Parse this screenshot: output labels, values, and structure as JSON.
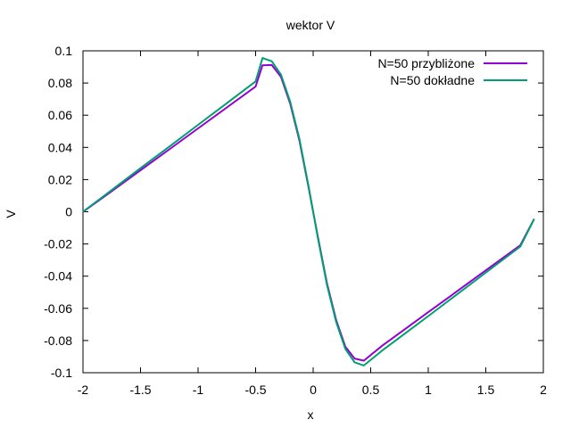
{
  "chart_data": {
    "type": "line",
    "title": "wektor V",
    "xlabel": "x",
    "ylabel": "V",
    "xlim": [
      -2,
      2
    ],
    "ylim": [
      -0.1,
      0.1
    ],
    "xticks": [
      -2,
      -1.5,
      -1,
      -0.5,
      0,
      0.5,
      1,
      1.5,
      2
    ],
    "xtick_labels": [
      "-2",
      "-1.5",
      "-1",
      "-0.5",
      "0",
      "0.5",
      "1",
      "1.5",
      "2"
    ],
    "yticks": [
      -0.1,
      -0.08,
      -0.06,
      -0.04,
      -0.02,
      0,
      0.02,
      0.04,
      0.06,
      0.08,
      0.1
    ],
    "ytick_labels": [
      "-0.1",
      "-0.08",
      "-0.06",
      "-0.04",
      "-0.02",
      "0",
      "0.02",
      "0.04",
      "0.06",
      "0.08",
      "0.1"
    ],
    "grid": false,
    "legend_position": "top-right",
    "series": [
      {
        "name": "N=50 przybliżone",
        "color": "#9400d3",
        "x": [
          -2,
          -1.75,
          -1.5,
          -1.25,
          -1,
          -0.75,
          -0.5,
          -0.44,
          -0.36,
          -0.28,
          -0.2,
          -0.12,
          -0.04,
          0,
          0.04,
          0.12,
          0.2,
          0.28,
          0.36,
          0.44,
          0.6,
          0.8,
          1,
          1.2,
          1.4,
          1.6,
          1.8,
          1.92
        ],
        "y": [
          0,
          0.0128,
          0.0258,
          0.0388,
          0.0518,
          0.0648,
          0.0778,
          0.091,
          0.0912,
          0.0838,
          0.0673,
          0.0445,
          0.0153,
          0,
          -0.0153,
          -0.0445,
          -0.0673,
          -0.0838,
          -0.0912,
          -0.0925,
          -0.0832,
          -0.0728,
          -0.0624,
          -0.052,
          -0.0416,
          -0.0312,
          -0.0208,
          -0.0045
        ]
      },
      {
        "name": "N=50 dokładne",
        "color": "#009e73",
        "x": [
          -2,
          -1.75,
          -1.5,
          -1.25,
          -1,
          -0.75,
          -0.5,
          -0.44,
          -0.36,
          -0.28,
          -0.2,
          -0.12,
          -0.04,
          0,
          0.04,
          0.12,
          0.2,
          0.28,
          0.36,
          0.44,
          0.6,
          0.8,
          1,
          1.2,
          1.4,
          1.6,
          1.8,
          1.92
        ],
        "y": [
          0,
          0.0135,
          0.0271,
          0.0405,
          0.054,
          0.0675,
          0.081,
          0.0955,
          0.0935,
          0.0852,
          0.0685,
          0.0455,
          0.016,
          0,
          -0.016,
          -0.0455,
          -0.0685,
          -0.0852,
          -0.0935,
          -0.0955,
          -0.0862,
          -0.0755,
          -0.0648,
          -0.054,
          -0.0432,
          -0.0324,
          -0.0216,
          -0.0045
        ]
      }
    ]
  }
}
